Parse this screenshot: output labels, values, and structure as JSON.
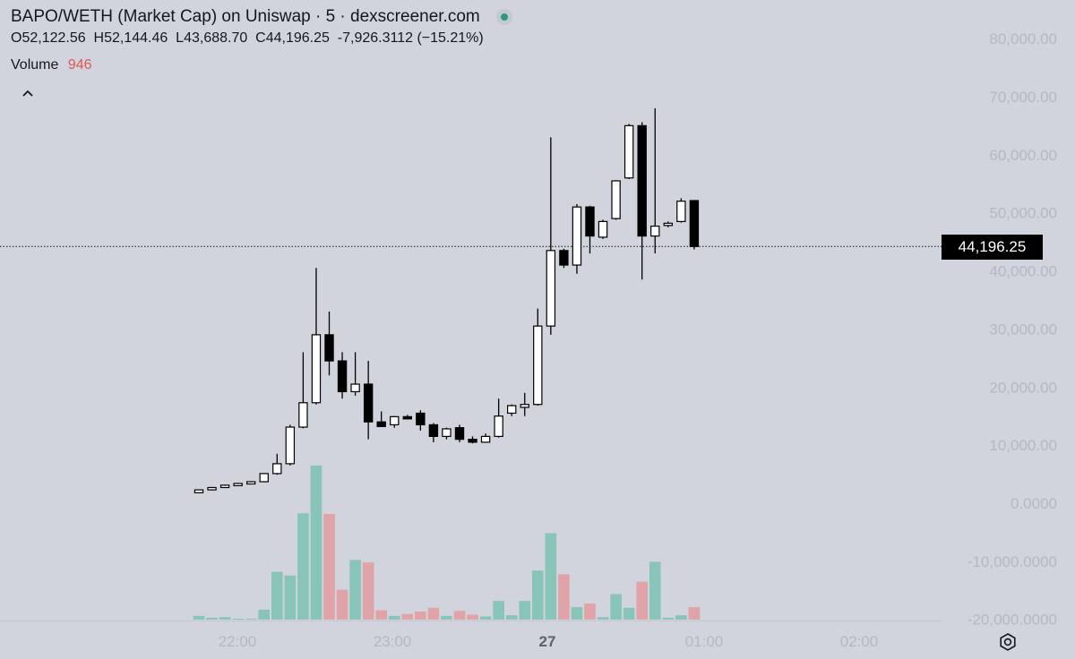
{
  "legend": {
    "title": "BAPO/WETH (Market Cap) on Uniswap · 5 · dexscreener.com",
    "open_label": "O",
    "open": "52,122.56",
    "high_label": "H",
    "high": "52,144.46",
    "low_label": "L",
    "low": "43,688.70",
    "close_label": "C",
    "close": "44,196.25",
    "change": "-7,926.3112 (−15.21%)",
    "volume_label": "Volume",
    "volume_value": "946"
  },
  "price_tag": "44,196.25",
  "colors": {
    "up_volume": "#89c4b8",
    "down_volume": "#e0a3a8",
    "up_candle": "#ffffff",
    "down_candle": "#000000"
  },
  "icons": {
    "collapse": "chevron-up-icon",
    "settings": "gear-icon"
  },
  "chart_data": {
    "type": "candlestick",
    "price_axis_labels": [
      "80,000.00",
      "70,000.00",
      "60,000.00",
      "50,000.00",
      "40,000.00",
      "30,000.00",
      "20,000.00",
      "10,000.00",
      "0.0000",
      "-10,000.0000",
      "-20,000.0000"
    ],
    "price_axis_values": [
      80000,
      70000,
      60000,
      50000,
      40000,
      30000,
      20000,
      10000,
      0,
      -10000,
      -20000
    ],
    "time_labels": [
      "22:00",
      "23:00",
      "27",
      "01:00",
      "02:00"
    ],
    "last_price": 44196.25,
    "candles": [
      {
        "o": 1800,
        "h": 2300,
        "l": 1700,
        "c": 2300,
        "v": 6
      },
      {
        "o": 2300,
        "h": 2800,
        "l": 2200,
        "c": 2700,
        "v": 3
      },
      {
        "o": 2700,
        "h": 3200,
        "l": 2600,
        "c": 3100,
        "v": 4
      },
      {
        "o": 3100,
        "h": 3500,
        "l": 3000,
        "c": 3400,
        "v": 1
      },
      {
        "o": 3400,
        "h": 3800,
        "l": 3300,
        "c": 3700,
        "v": 1
      },
      {
        "o": 3700,
        "h": 5200,
        "l": 3600,
        "c": 5100,
        "v": 16
      },
      {
        "o": 5100,
        "h": 8500,
        "l": 4900,
        "c": 6800,
        "v": 77
      },
      {
        "o": 6800,
        "h": 13500,
        "l": 6500,
        "c": 13100,
        "v": 71
      },
      {
        "o": 13100,
        "h": 26000,
        "l": 12900,
        "c": 17300,
        "v": 171
      },
      {
        "o": 17300,
        "h": 40500,
        "l": 17000,
        "c": 29000,
        "v": 248
      },
      {
        "o": 29000,
        "h": 33000,
        "l": 22000,
        "c": 24500,
        "v": 170
      },
      {
        "o": 24500,
        "h": 26000,
        "l": 18000,
        "c": 19200,
        "v": 48
      },
      {
        "o": 19200,
        "h": 26000,
        "l": 18500,
        "c": 20500,
        "v": 96
      },
      {
        "o": 20500,
        "h": 24500,
        "l": 11000,
        "c": 14000,
        "v": 92
      },
      {
        "o": 14000,
        "h": 15800,
        "l": 13500,
        "c": 13200,
        "v": 15
      },
      {
        "o": 13500,
        "h": 15000,
        "l": 13000,
        "c": 14900,
        "v": 6
      },
      {
        "o": 14900,
        "h": 15200,
        "l": 14500,
        "c": 14700,
        "v": 9
      },
      {
        "o": 15500,
        "h": 16000,
        "l": 12500,
        "c": 13500,
        "v": 13
      },
      {
        "o": 13500,
        "h": 13800,
        "l": 10500,
        "c": 11500,
        "v": 19
      },
      {
        "o": 11500,
        "h": 13000,
        "l": 11000,
        "c": 12800,
        "v": 6
      },
      {
        "o": 13000,
        "h": 13500,
        "l": 10500,
        "c": 11000,
        "v": 14
      },
      {
        "o": 11000,
        "h": 11500,
        "l": 10300,
        "c": 10500,
        "v": 8
      },
      {
        "o": 10500,
        "h": 12000,
        "l": 10400,
        "c": 11500,
        "v": 5
      },
      {
        "o": 11500,
        "h": 18000,
        "l": 11300,
        "c": 15000,
        "v": 30
      },
      {
        "o": 15500,
        "h": 17000,
        "l": 15000,
        "c": 16800,
        "v": 7
      },
      {
        "o": 16500,
        "h": 19000,
        "l": 15000,
        "c": 17000,
        "v": 30
      },
      {
        "o": 17000,
        "h": 33500,
        "l": 16800,
        "c": 30500,
        "v": 79
      },
      {
        "o": 30500,
        "h": 63000,
        "l": 29000,
        "c": 43500,
        "v": 139
      },
      {
        "o": 43500,
        "h": 43800,
        "l": 40500,
        "c": 41000,
        "v": 73
      },
      {
        "o": 41000,
        "h": 51500,
        "l": 39500,
        "c": 51000,
        "v": 20
      },
      {
        "o": 51000,
        "h": 51200,
        "l": 43000,
        "c": 46000,
        "v": 26
      },
      {
        "o": 45800,
        "h": 48800,
        "l": 45500,
        "c": 48500,
        "v": 4
      },
      {
        "o": 49000,
        "h": 55600,
        "l": 48800,
        "c": 55500,
        "v": 41
      },
      {
        "o": 56000,
        "h": 65300,
        "l": 55800,
        "c": 65000,
        "v": 19
      },
      {
        "o": 65000,
        "h": 65600,
        "l": 38500,
        "c": 46000,
        "v": 61
      },
      {
        "o": 46000,
        "h": 68000,
        "l": 43000,
        "c": 47700,
        "v": 93
      },
      {
        "o": 48000,
        "h": 48500,
        "l": 47500,
        "c": 48200,
        "v": 3
      },
      {
        "o": 48500,
        "h": 52500,
        "l": 48300,
        "c": 52000,
        "v": 7
      },
      {
        "o": 52100,
        "h": 52200,
        "l": 43700,
        "c": 44200,
        "v": 20
      }
    ]
  }
}
